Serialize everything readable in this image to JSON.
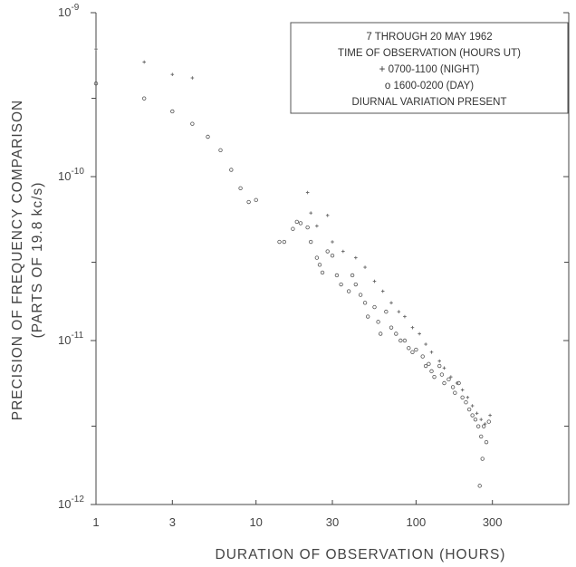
{
  "chart_data": {
    "type": "scatter",
    "xscale": "log",
    "yscale": "log",
    "xlim": [
      1,
      900
    ],
    "ylim": [
      1e-12,
      1e-09
    ],
    "grid": false,
    "legend_position": "top-right",
    "xlabel": "DURATION OF OBSERVATION (HOURS)",
    "ylabel": [
      "PRECISION OF FREQUENCY COMPARISON",
      "(PARTS OF 19.8 kc/s)"
    ],
    "x_ticks": [
      1,
      3,
      10,
      30,
      100,
      300
    ],
    "x_tick_labels": [
      "1",
      "3",
      "10",
      "30",
      "100",
      "300"
    ],
    "y_ticks": [
      1e-12,
      1e-11,
      1e-10,
      1e-09
    ],
    "y_tick_labels": [
      {
        "base": "10",
        "exp": "-12"
      },
      {
        "base": "10",
        "exp": "-11"
      },
      {
        "base": "10",
        "exp": "-10"
      },
      {
        "base": "10",
        "exp": "-9"
      }
    ],
    "legend_lines": [
      "7 THROUGH 20 MAY 1962",
      "TIME OF OBSERVATION  (HOURS UT)",
      "+ 0700-1100  (NIGHT)",
      "o 1600-0200  (DAY)",
      "DIURNAL VARIATION PRESENT"
    ],
    "series": [
      {
        "name": "0700-1100 (NIGHT)",
        "marker": "plus",
        "points": [
          [
            1,
            6e-10
          ],
          [
            2,
            5e-10
          ],
          [
            3,
            4.2e-10
          ],
          [
            4,
            4e-10
          ],
          [
            21,
            8e-11
          ],
          [
            22,
            6e-11
          ],
          [
            24,
            5e-11
          ],
          [
            28,
            5.8e-11
          ],
          [
            30,
            4e-11
          ],
          [
            35,
            3.5e-11
          ],
          [
            42,
            3.2e-11
          ],
          [
            48,
            2.8e-11
          ],
          [
            55,
            2.3e-11
          ],
          [
            62,
            2e-11
          ],
          [
            70,
            1.7e-11
          ],
          [
            78,
            1.5e-11
          ],
          [
            85,
            1.4e-11
          ],
          [
            95,
            1.2e-11
          ],
          [
            105,
            1.1e-11
          ],
          [
            115,
            9.5e-12
          ],
          [
            125,
            8.5e-12
          ],
          [
            140,
            7.5e-12
          ],
          [
            150,
            6.8e-12
          ],
          [
            165,
            6e-12
          ],
          [
            180,
            5.5e-12
          ],
          [
            195,
            5e-12
          ],
          [
            210,
            4.5e-12
          ],
          [
            225,
            4e-12
          ],
          [
            240,
            3.6e-12
          ],
          [
            255,
            3.3e-12
          ],
          [
            270,
            3.1e-12
          ],
          [
            290,
            3.5e-12
          ]
        ]
      },
      {
        "name": "1600-0200 (DAY)",
        "marker": "circle",
        "points": [
          [
            1,
            3.7e-10
          ],
          [
            2,
            3e-10
          ],
          [
            3,
            2.5e-10
          ],
          [
            4,
            2.1e-10
          ],
          [
            5,
            1.75e-10
          ],
          [
            6,
            1.45e-10
          ],
          [
            7,
            1.1e-10
          ],
          [
            8,
            8.5e-11
          ],
          [
            9,
            7e-11
          ],
          [
            10,
            7.2e-11
          ],
          [
            14,
            4e-11
          ],
          [
            15,
            4e-11
          ],
          [
            17,
            4.8e-11
          ],
          [
            18,
            5.3e-11
          ],
          [
            19,
            5.2e-11
          ],
          [
            21,
            4.9e-11
          ],
          [
            22,
            4e-11
          ],
          [
            24,
            3.2e-11
          ],
          [
            25,
            2.9e-11
          ],
          [
            26,
            2.6e-11
          ],
          [
            28,
            3.5e-11
          ],
          [
            30,
            3.3e-11
          ],
          [
            32,
            2.5e-11
          ],
          [
            34,
            2.2e-11
          ],
          [
            38,
            2e-11
          ],
          [
            40,
            2.5e-11
          ],
          [
            42,
            2.2e-11
          ],
          [
            45,
            1.9e-11
          ],
          [
            48,
            1.7e-11
          ],
          [
            50,
            1.4e-11
          ],
          [
            55,
            1.6e-11
          ],
          [
            58,
            1.3e-11
          ],
          [
            60,
            1.1e-11
          ],
          [
            65,
            1.5e-11
          ],
          [
            70,
            1.2e-11
          ],
          [
            75,
            1.1e-11
          ],
          [
            80,
            1e-11
          ],
          [
            85,
            1e-11
          ],
          [
            90,
            9e-12
          ],
          [
            95,
            8.5e-12
          ],
          [
            100,
            8.8e-12
          ],
          [
            110,
            8e-12
          ],
          [
            115,
            7e-12
          ],
          [
            120,
            7.2e-12
          ],
          [
            125,
            6.5e-12
          ],
          [
            130,
            6e-12
          ],
          [
            140,
            7e-12
          ],
          [
            145,
            6.2e-12
          ],
          [
            150,
            5.5e-12
          ],
          [
            160,
            5.8e-12
          ],
          [
            170,
            5.2e-12
          ],
          [
            175,
            4.8e-12
          ],
          [
            185,
            5.5e-12
          ],
          [
            195,
            4.5e-12
          ],
          [
            205,
            4.2e-12
          ],
          [
            215,
            3.8e-12
          ],
          [
            225,
            3.5e-12
          ],
          [
            235,
            3.3e-12
          ],
          [
            245,
            3e-12
          ],
          [
            255,
            2.6e-12
          ],
          [
            265,
            3e-12
          ],
          [
            275,
            2.4e-12
          ],
          [
            285,
            3.2e-12
          ],
          [
            260,
            1.9e-12
          ],
          [
            250,
            1.3e-12
          ]
        ]
      }
    ]
  }
}
